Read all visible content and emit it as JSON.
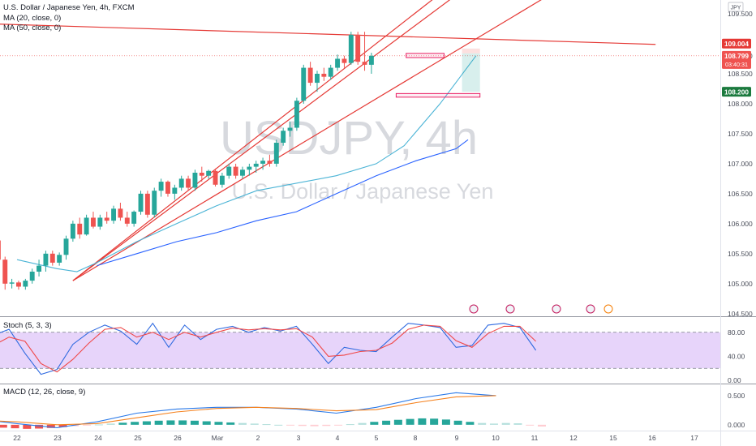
{
  "header": {
    "title": "U.S. Dollar / Japanese Yen, 4h, FXCM",
    "ma20": "MA (20, close, 0)",
    "ma50": "MA (50, close, 0)",
    "currency": "JPY"
  },
  "watermark": {
    "symbol": "USDJPY, 4h",
    "name": "U.S. Dollar / Japanese Yen"
  },
  "colors": {
    "up": "#26a69a",
    "down": "#ef5350",
    "ma20": "#4bb4d6",
    "ma50": "#2962ff",
    "trend": "#e53935",
    "stoch_k": "#2f6ae0",
    "stoch_d": "#f04848",
    "macd": "#2a79e8",
    "signal": "#f5821f",
    "stoch_band": "#e7d4fa"
  },
  "price_labels": [
    {
      "id": "resistance",
      "value": "109.004",
      "price": 109.004,
      "color": "#e53935"
    },
    {
      "id": "last",
      "value": "108.799",
      "sub": "03:40:31",
      "price": 108.799,
      "color": "#ef5350"
    },
    {
      "id": "target",
      "value": "108.200",
      "price": 108.2,
      "color": "#1b7a3e"
    }
  ],
  "chart_data": [
    {
      "type": "candlestick",
      "title": "U.S. Dollar / Japanese Yen, 4h, FXCM",
      "x_ticks": [
        "22",
        "23",
        "24",
        "25",
        "26",
        "Mar",
        "2",
        "3",
        "4",
        "5",
        "8",
        "9",
        "10",
        "11",
        "12",
        "15",
        "16",
        "17"
      ],
      "y_ticks": [
        "109.500",
        "108.800",
        "108.500",
        "108.000",
        "107.500",
        "107.000",
        "106.500",
        "106.000",
        "105.500",
        "105.000",
        "104.500"
      ],
      "ylim": [
        104.47,
        109.73
      ],
      "candles": [
        [
          105.5,
          105.62,
          105.42,
          105.55
        ],
        [
          105.55,
          105.75,
          105.5,
          105.68
        ],
        [
          105.68,
          105.85,
          105.62,
          105.72
        ],
        [
          105.72,
          105.74,
          105.35,
          105.4
        ],
        [
          105.4,
          105.45,
          104.9,
          105.0
        ],
        [
          105.0,
          105.08,
          104.92,
          105.02
        ],
        [
          105.02,
          105.05,
          104.9,
          104.95
        ],
        [
          104.95,
          105.08,
          104.9,
          105.05
        ],
        [
          105.05,
          105.25,
          105.0,
          105.2
        ],
        [
          105.2,
          105.4,
          105.12,
          105.3
        ],
        [
          105.3,
          105.55,
          105.2,
          105.5
        ],
        [
          105.5,
          105.55,
          105.3,
          105.35
        ],
        [
          105.35,
          105.52,
          105.3,
          105.48
        ],
        [
          105.48,
          105.8,
          105.4,
          105.75
        ],
        [
          105.75,
          106.05,
          105.7,
          106.0
        ],
        [
          106.0,
          106.1,
          105.75,
          105.82
        ],
        [
          105.82,
          106.15,
          105.8,
          106.1
        ],
        [
          106.1,
          106.2,
          105.92,
          105.95
        ],
        [
          105.95,
          106.15,
          105.9,
          106.1
        ],
        [
          106.1,
          106.2,
          106.0,
          106.05
        ],
        [
          106.05,
          106.3,
          106.0,
          106.25
        ],
        [
          106.25,
          106.35,
          106.05,
          106.1
        ],
        [
          106.1,
          106.2,
          105.95,
          106.0
        ],
        [
          106.0,
          106.22,
          105.95,
          106.2
        ],
        [
          106.2,
          106.55,
          106.15,
          106.5
        ],
        [
          106.5,
          106.55,
          106.1,
          106.15
        ],
        [
          106.15,
          106.6,
          106.1,
          106.55
        ],
        [
          106.55,
          106.75,
          106.45,
          106.7
        ],
        [
          106.7,
          106.72,
          106.45,
          106.5
        ],
        [
          106.5,
          106.65,
          106.4,
          106.6
        ],
        [
          106.6,
          106.8,
          106.55,
          106.75
        ],
        [
          106.75,
          106.8,
          106.55,
          106.6
        ],
        [
          106.6,
          106.9,
          106.55,
          106.85
        ],
        [
          106.85,
          106.95,
          106.7,
          106.8
        ],
        [
          106.8,
          106.9,
          106.75,
          106.88
        ],
        [
          106.88,
          106.92,
          106.62,
          106.65
        ],
        [
          106.65,
          106.85,
          106.6,
          106.8
        ],
        [
          106.8,
          107.0,
          106.75,
          106.95
        ],
        [
          106.95,
          107.0,
          106.75,
          106.8
        ],
        [
          106.8,
          106.95,
          106.75,
          106.9
        ],
        [
          106.9,
          107.0,
          106.8,
          106.95
        ],
        [
          106.95,
          107.05,
          106.85,
          107.0
        ],
        [
          107.0,
          107.1,
          106.9,
          107.05
        ],
        [
          107.05,
          107.15,
          106.95,
          107.0
        ],
        [
          107.0,
          107.4,
          106.95,
          107.35
        ],
        [
          107.35,
          107.6,
          107.3,
          107.55
        ],
        [
          107.55,
          107.7,
          107.45,
          107.6
        ],
        [
          107.6,
          108.1,
          107.55,
          108.05
        ],
        [
          108.05,
          108.65,
          108.0,
          108.6
        ],
        [
          108.6,
          108.7,
          108.3,
          108.35
        ],
        [
          108.35,
          108.55,
          108.2,
          108.5
        ],
        [
          108.5,
          108.6,
          108.38,
          108.45
        ],
        [
          108.45,
          108.65,
          108.4,
          108.6
        ],
        [
          108.6,
          108.82,
          108.55,
          108.75
        ],
        [
          108.75,
          108.8,
          108.6,
          108.68
        ],
        [
          108.68,
          109.2,
          108.65,
          109.15
        ],
        [
          109.15,
          109.2,
          108.65,
          108.7
        ],
        [
          108.7,
          109.2,
          108.55,
          108.65
        ],
        [
          108.65,
          108.85,
          108.5,
          108.8
        ]
      ],
      "ma20": [
        [
          22.0,
          105.4
        ],
        [
          23.0,
          105.25
        ],
        [
          23.5,
          105.2
        ],
        [
          24.0,
          105.35
        ],
        [
          25.0,
          105.7
        ],
        [
          26.0,
          106.0
        ],
        [
          27.0,
          106.3
        ],
        [
          28.0,
          106.55
        ],
        [
          30.0,
          106.8
        ],
        [
          31.0,
          107.0
        ],
        [
          31.7,
          107.3
        ],
        [
          32.6,
          108.0
        ],
        [
          33.5,
          108.8
        ]
      ],
      "ma50": [
        [
          24.0,
          105.3
        ],
        [
          25.0,
          105.5
        ],
        [
          26.0,
          105.7
        ],
        [
          27.0,
          105.85
        ],
        [
          28.0,
          106.05
        ],
        [
          29.0,
          106.2
        ],
        [
          30.0,
          106.5
        ],
        [
          31.0,
          106.8
        ],
        [
          32.0,
          107.05
        ],
        [
          33.0,
          107.25
        ],
        [
          33.3,
          107.4
        ]
      ],
      "trendlines": [
        {
          "from": [
            23.4,
            105.05
          ],
          "to": [
            35.8,
            111.5
          ]
        },
        {
          "from": [
            23.4,
            105.05
          ],
          "to": [
            35.8,
            111.2
          ]
        },
        {
          "from": [
            23.4,
            105.05
          ],
          "to": [
            35.8,
            110.0
          ]
        },
        {
          "from": [
            20.0,
            109.36
          ],
          "to": [
            38.0,
            108.99
          ]
        }
      ],
      "boxes": [
        {
          "x1": 31.75,
          "x2": 32.7,
          "y1": 108.84,
          "y2": 108.77
        },
        {
          "x1": 31.5,
          "x2": 33.6,
          "y1": 108.17,
          "y2": 108.11
        }
      ],
      "position_box": {
        "x1": 33.15,
        "x2": 33.6,
        "entry": 108.84,
        "target": 108.2,
        "stop": 108.92
      }
    },
    {
      "type": "line",
      "title": "Stoch (5, 3, 3)",
      "y_ticks": [
        "80.00",
        "40.00",
        "0.00"
      ],
      "ylim": [
        -4,
        104
      ],
      "band": [
        20,
        80
      ],
      "series": [
        {
          "name": "%K",
          "points": [
            [
              21.0,
              40
            ],
            [
              21.4,
              75
            ],
            [
              21.8,
              85
            ],
            [
              22.2,
              45
            ],
            [
              22.6,
              10
            ],
            [
              23.0,
              18
            ],
            [
              23.4,
              60
            ],
            [
              23.8,
              80
            ],
            [
              24.2,
              92
            ],
            [
              24.6,
              82
            ],
            [
              25.0,
              60
            ],
            [
              25.4,
              95
            ],
            [
              25.8,
              55
            ],
            [
              26.2,
              92
            ],
            [
              26.6,
              68
            ],
            [
              27.0,
              85
            ],
            [
              27.4,
              90
            ],
            [
              27.8,
              80
            ],
            [
              28.2,
              88
            ],
            [
              28.6,
              82
            ],
            [
              29.0,
              90
            ],
            [
              29.4,
              60
            ],
            [
              29.8,
              28
            ],
            [
              30.2,
              55
            ],
            [
              30.6,
              50
            ],
            [
              31.0,
              48
            ],
            [
              31.4,
              72
            ],
            [
              31.8,
              95
            ],
            [
              32.2,
              92
            ],
            [
              32.6,
              88
            ],
            [
              33.0,
              55
            ],
            [
              33.4,
              58
            ],
            [
              33.8,
              92
            ],
            [
              34.2,
              95
            ],
            [
              34.6,
              88
            ],
            [
              35.0,
              50
            ]
          ]
        },
        {
          "name": "%D",
          "points": [
            [
              21.0,
              35
            ],
            [
              21.4,
              58
            ],
            [
              21.8,
              72
            ],
            [
              22.2,
              65
            ],
            [
              22.6,
              28
            ],
            [
              23.0,
              14
            ],
            [
              23.4,
              35
            ],
            [
              23.8,
              62
            ],
            [
              24.2,
              85
            ],
            [
              24.6,
              88
            ],
            [
              25.0,
              72
            ],
            [
              25.4,
              80
            ],
            [
              25.8,
              68
            ],
            [
              26.2,
              80
            ],
            [
              26.6,
              72
            ],
            [
              27.0,
              80
            ],
            [
              27.4,
              87
            ],
            [
              27.8,
              84
            ],
            [
              28.2,
              86
            ],
            [
              28.6,
              84
            ],
            [
              29.0,
              86
            ],
            [
              29.4,
              72
            ],
            [
              29.8,
              40
            ],
            [
              30.2,
              42
            ],
            [
              30.6,
              48
            ],
            [
              31.0,
              50
            ],
            [
              31.4,
              62
            ],
            [
              31.8,
              85
            ],
            [
              32.2,
              92
            ],
            [
              32.6,
              90
            ],
            [
              33.0,
              66
            ],
            [
              33.4,
              55
            ],
            [
              33.8,
              78
            ],
            [
              34.2,
              90
            ],
            [
              34.6,
              90
            ],
            [
              35.0,
              65
            ]
          ]
        }
      ]
    },
    {
      "type": "bar",
      "title": "MACD (12, 26, close, 9)",
      "y_ticks": [
        "0.500",
        "0.000"
      ],
      "ylim": [
        -0.1,
        0.68
      ],
      "histogram": [
        -0.02,
        -0.035,
        -0.05,
        -0.06,
        -0.07,
        -0.065,
        -0.055,
        -0.04,
        -0.025,
        -0.01,
        0.005,
        0.02,
        0.035,
        0.05,
        0.06,
        0.07,
        0.075,
        0.075,
        0.07,
        0.06,
        0.05,
        0.04,
        0.03,
        0.02,
        0.01,
        0.0,
        -0.01,
        -0.02,
        -0.025,
        -0.02,
        -0.01,
        0.01,
        0.03,
        0.05,
        0.07,
        0.085,
        0.1,
        0.11,
        0.105,
        0.09,
        0.07,
        0.05,
        0.03,
        0.02,
        0.03,
        0.025,
        -0.01,
        -0.03
      ],
      "macd": [
        [
          21.0,
          0.1
        ],
        [
          22.0,
          0.02
        ],
        [
          23.0,
          -0.05
        ],
        [
          24.0,
          0.05
        ],
        [
          25.0,
          0.2
        ],
        [
          26.0,
          0.27
        ],
        [
          27.0,
          0.3
        ],
        [
          28.0,
          0.3
        ],
        [
          29.0,
          0.27
        ],
        [
          30.0,
          0.2
        ],
        [
          31.0,
          0.3
        ],
        [
          32.0,
          0.45
        ],
        [
          33.0,
          0.55
        ],
        [
          34.0,
          0.5
        ]
      ],
      "signal": [
        [
          21.0,
          0.08
        ],
        [
          22.0,
          0.05
        ],
        [
          23.0,
          0.0
        ],
        [
          24.0,
          0.02
        ],
        [
          25.0,
          0.12
        ],
        [
          26.0,
          0.22
        ],
        [
          27.0,
          0.28
        ],
        [
          28.0,
          0.3
        ],
        [
          29.0,
          0.28
        ],
        [
          30.0,
          0.24
        ],
        [
          31.0,
          0.26
        ],
        [
          32.0,
          0.38
        ],
        [
          33.0,
          0.48
        ],
        [
          34.0,
          0.5
        ]
      ]
    }
  ]
}
